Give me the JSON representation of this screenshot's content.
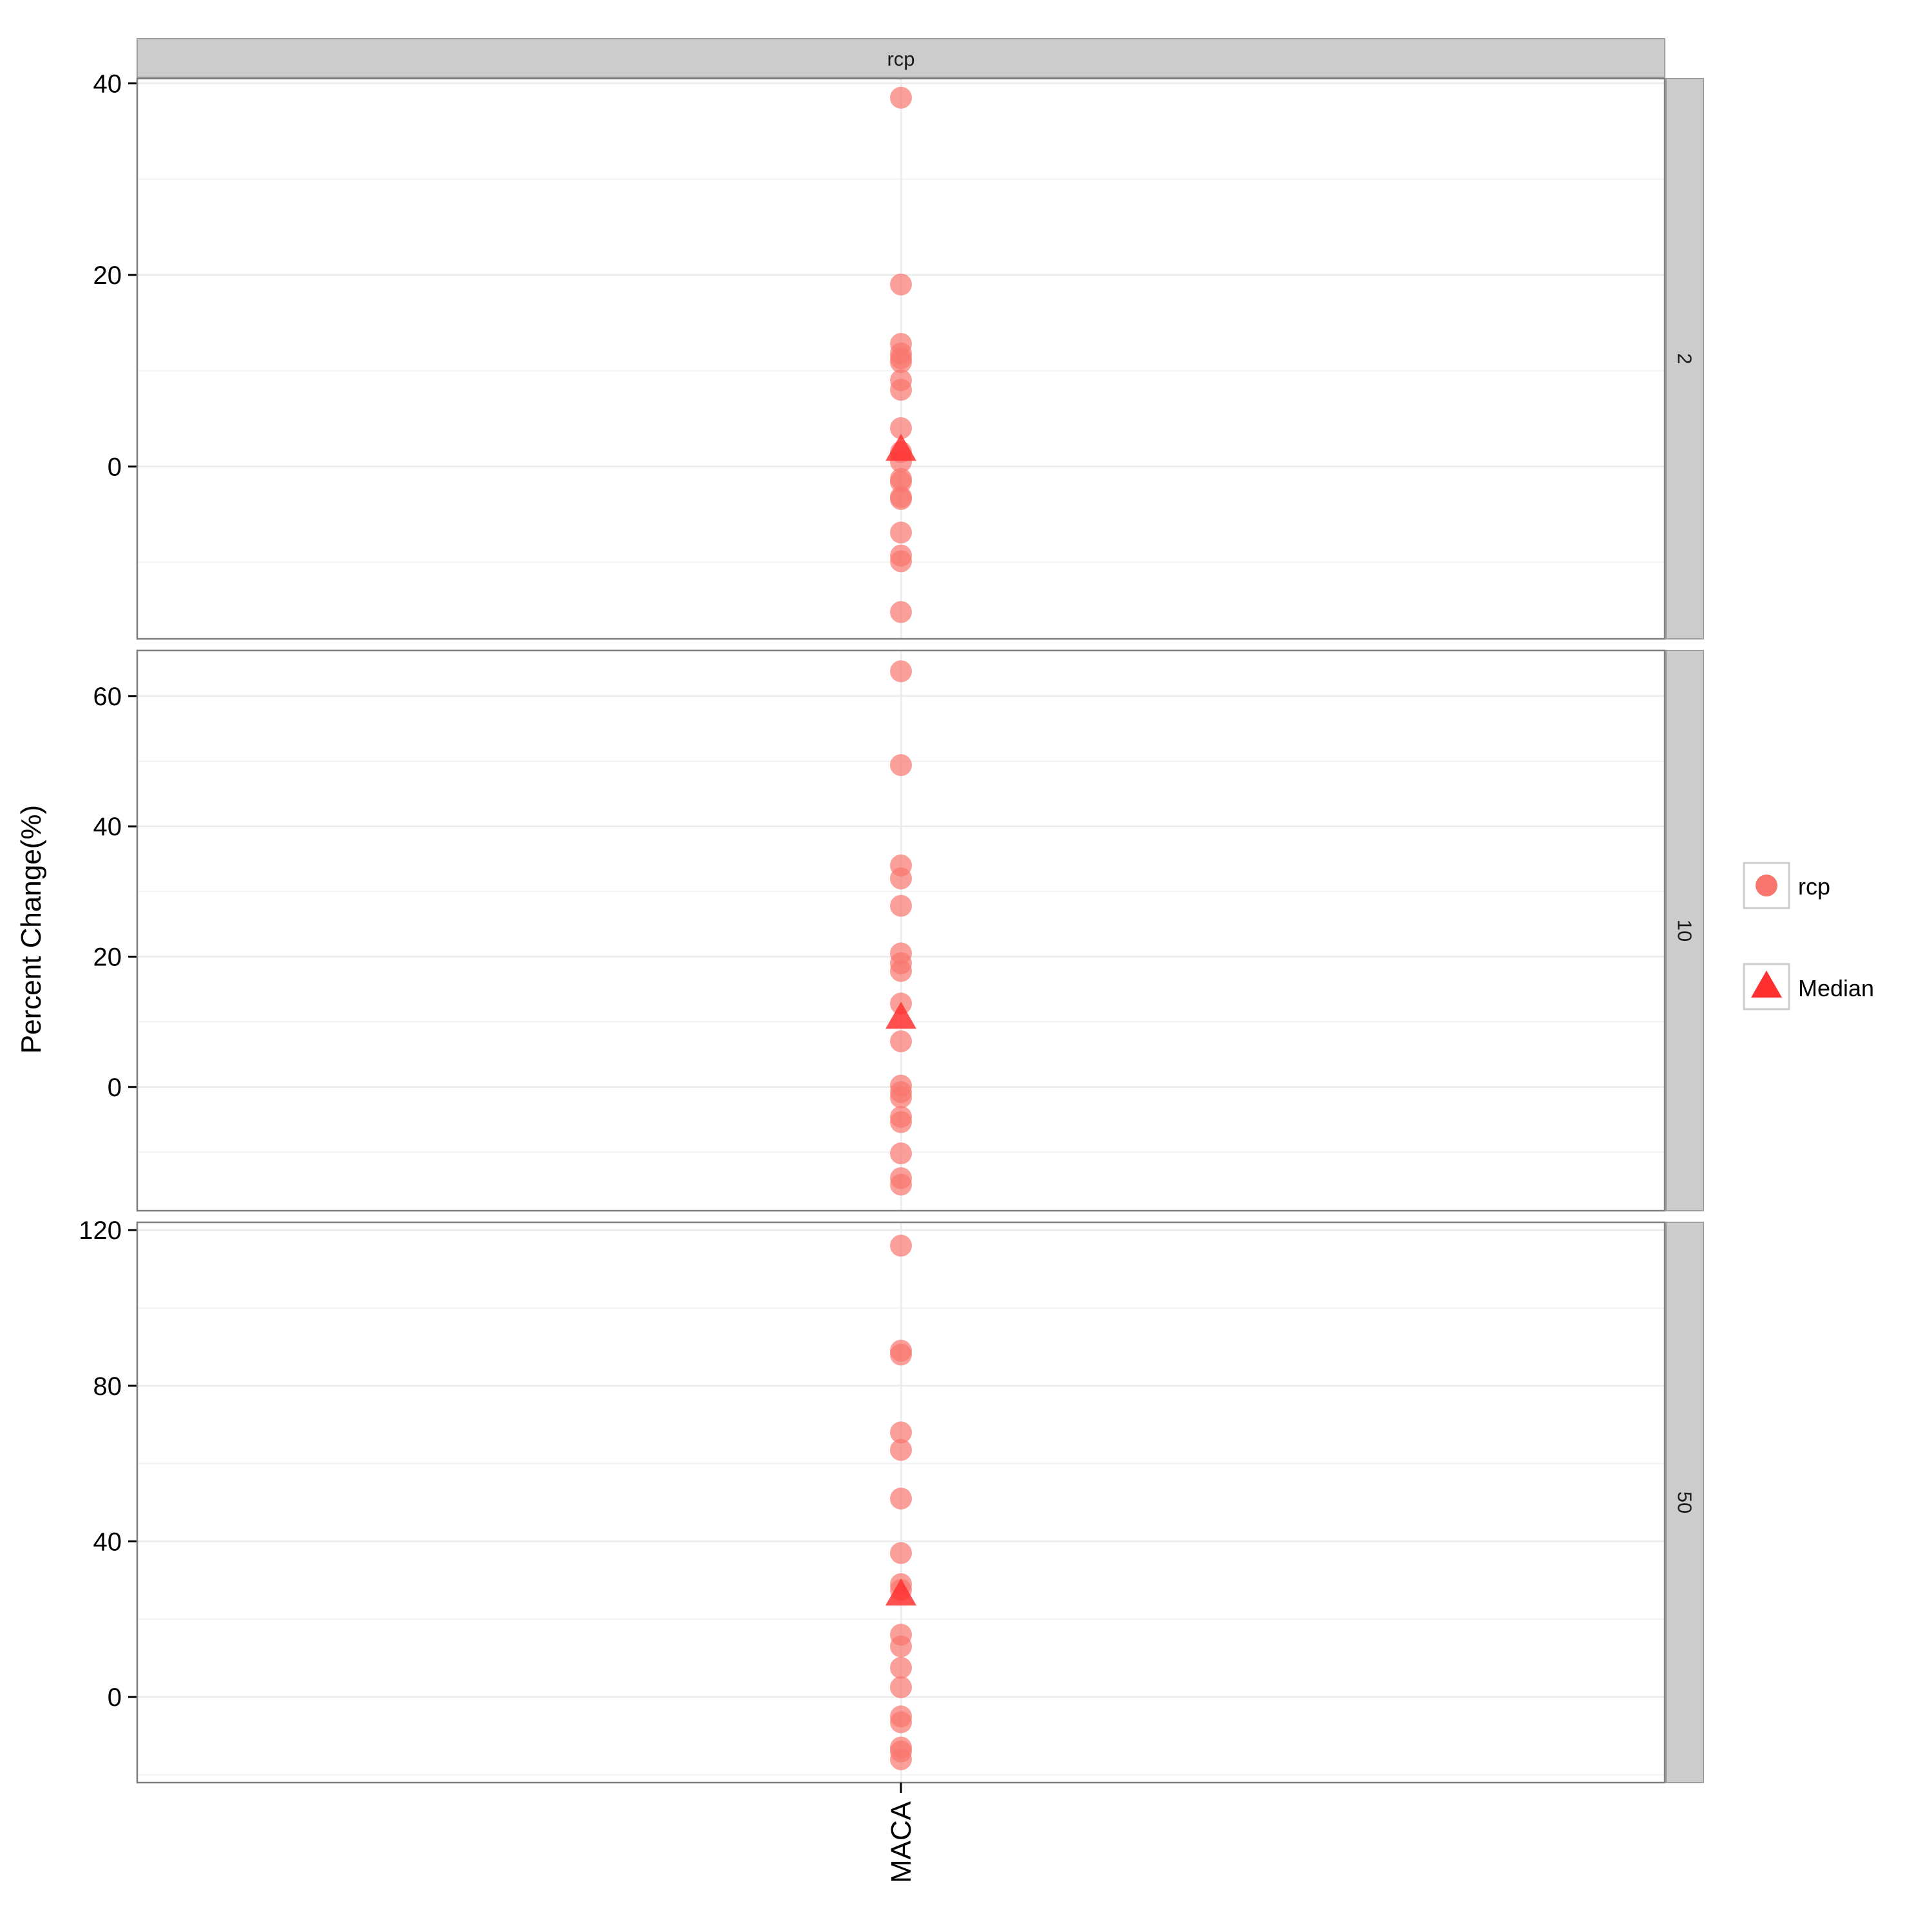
{
  "chart_data": {
    "type": "scatter",
    "title": "",
    "xlabel": "",
    "ylabel": "Percent Change(%)",
    "strip_top": "rcp",
    "x_categories": [
      "MACA"
    ],
    "grid": true,
    "legend_position": "right",
    "legend": [
      {
        "label": "rcp",
        "shape": "circle",
        "color": "#f8766d"
      },
      {
        "label": "Median",
        "shape": "triangle",
        "color": "#ff3030"
      }
    ],
    "panels": [
      {
        "label": "2",
        "ylim": [
          -18,
          40.5
        ],
        "yticks": [
          0,
          20,
          40
        ],
        "tick_labels": [
          "0",
          "20",
          "40"
        ],
        "points": [
          38.5,
          19.0,
          12.8,
          11.8,
          11.3,
          10.9,
          9.0,
          8.0,
          4.0,
          1.5,
          0.5,
          -1.3,
          -1.6,
          -3.2,
          -3.4,
          -6.9,
          -9.3,
          -9.9,
          -15.2
        ],
        "median": 2.0
      },
      {
        "label": "10",
        "ylim": [
          -19,
          67
        ],
        "yticks": [
          0,
          20,
          40,
          60
        ],
        "tick_labels": [
          "0",
          "20",
          "40",
          "60"
        ],
        "points": [
          63.8,
          49.4,
          34.0,
          32.0,
          27.8,
          20.5,
          19.0,
          17.8,
          12.8,
          7.0,
          0.2,
          -0.8,
          -1.6,
          -4.6,
          -5.4,
          -10.2,
          -14.0,
          -15.0
        ],
        "median": 11.0
      },
      {
        "label": "50",
        "ylim": [
          -22,
          122
        ],
        "yticks": [
          0,
          40,
          80,
          120
        ],
        "tick_labels": [
          "0",
          "40",
          "80",
          "120"
        ],
        "points": [
          116.0,
          89.0,
          88.0,
          68.0,
          63.5,
          51.0,
          37.0,
          29.0,
          27.5,
          16.0,
          13.0,
          7.5,
          2.5,
          -5.0,
          -6.5,
          -13.0,
          -14.0,
          -16.0
        ],
        "median": 27.0
      }
    ]
  },
  "colors": {
    "point": "#f8766d",
    "median": "#ff3030",
    "strip_fill": "#cccccc",
    "panel_border": "#7f7f7f",
    "grid": "#ebebeb"
  }
}
